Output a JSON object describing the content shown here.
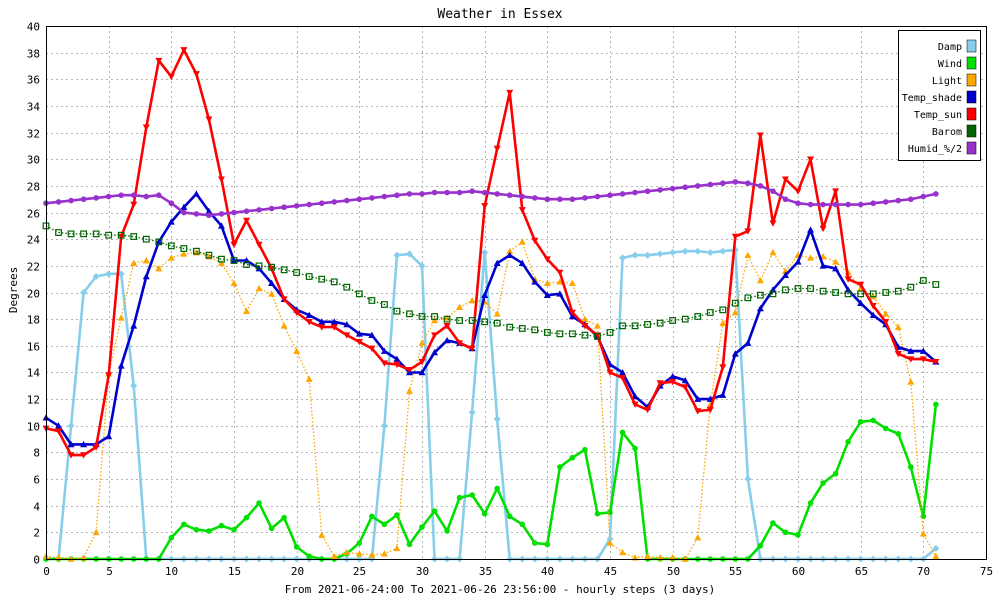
{
  "chart_data": {
    "type": "line",
    "title": "Weather in Essex",
    "xlabel": "From 2021-06-24:00 To 2021-06-26 23:56:00 - hourly steps (3 days)",
    "ylabel": "Degrees",
    "xlim": [
      0,
      75
    ],
    "ylim": [
      0,
      40
    ],
    "x_ticks": [
      "0",
      "5",
      "10",
      "15",
      "20",
      "25",
      "30",
      "35",
      "40",
      "45",
      "50",
      "55",
      "60",
      "65",
      "70",
      "75"
    ],
    "y_ticks": [
      "0",
      "2",
      "4",
      "6",
      "8",
      "10",
      "12",
      "14",
      "16",
      "18",
      "20",
      "22",
      "24",
      "26",
      "28",
      "30",
      "32",
      "34",
      "36",
      "38",
      "40"
    ],
    "grid": true,
    "legend_position": "top-right",
    "x": [
      0,
      1,
      2,
      3,
      4,
      5,
      6,
      7,
      8,
      9,
      10,
      11,
      12,
      13,
      14,
      15,
      16,
      17,
      18,
      19,
      20,
      21,
      22,
      23,
      24,
      25,
      26,
      27,
      28,
      29,
      30,
      31,
      32,
      33,
      34,
      35,
      36,
      37,
      38,
      39,
      40,
      41,
      42,
      43,
      44,
      45,
      46,
      47,
      48,
      49,
      50,
      51,
      52,
      53,
      54,
      55,
      56,
      57,
      58,
      59,
      60,
      61,
      62,
      63,
      64,
      65,
      66,
      67,
      68,
      69,
      70,
      71
    ],
    "series": [
      {
        "name": "Damp",
        "color": "#87ceeb",
        "marker": "diamond",
        "line": "solid",
        "values": [
          0,
          0,
          10,
          20,
          21.2,
          21.4,
          21.4,
          13,
          0,
          0,
          0,
          0,
          0,
          0,
          0,
          0,
          0,
          0,
          0,
          0,
          0,
          0,
          0,
          0,
          0,
          0,
          0,
          10,
          22.8,
          22.9,
          22,
          0,
          0,
          0,
          11,
          23,
          10.5,
          0,
          0,
          0,
          0,
          0,
          0,
          0,
          0,
          1.5,
          22.6,
          22.8,
          22.8,
          22.9,
          23,
          23.1,
          23.1,
          23,
          23.1,
          23.2,
          6,
          0,
          0,
          0,
          0,
          0,
          0,
          0,
          0,
          0,
          0,
          0,
          0,
          0,
          0,
          0.8
        ]
      },
      {
        "name": "Wind",
        "color": "#00e000",
        "marker": "circle",
        "line": "solid",
        "values": [
          0,
          0,
          0,
          0,
          0,
          0,
          0,
          0,
          0,
          0,
          1.6,
          2.6,
          2.2,
          2.1,
          2.5,
          2.2,
          3.1,
          4.2,
          2.3,
          3.1,
          0.9,
          0.2,
          0,
          0,
          0.4,
          1.2,
          3.2,
          2.6,
          3.3,
          1.1,
          2.4,
          3.6,
          2.1,
          4.6,
          4.8,
          3.4,
          5.3,
          3.2,
          2.6,
          1.2,
          1.1,
          6.9,
          7.6,
          8.2,
          3.4,
          3.5,
          9.5,
          8.3,
          0,
          0,
          0,
          0,
          0,
          0,
          0,
          0,
          0,
          1,
          2.7,
          2,
          1.8,
          4.2,
          5.7,
          6.4,
          8.8,
          10.3,
          10.4,
          9.8,
          9.4,
          6.9,
          3.2,
          11.6
        ]
      },
      {
        "name": "Light",
        "color": "#ffa500",
        "marker": "triangle-up",
        "line": "dotted",
        "values": [
          0.2,
          0.1,
          0,
          0.1,
          2,
          13.9,
          18.1,
          22.2,
          22.4,
          21.8,
          22.6,
          22.9,
          23,
          22.7,
          22.2,
          20.7,
          18.6,
          20.3,
          19.9,
          17.5,
          15.6,
          13.5,
          1.8,
          0.2,
          0.5,
          0.4,
          0.3,
          0.4,
          0.8,
          12.6,
          16.2,
          17.9,
          18.1,
          18.9,
          19.4,
          19.3,
          18.4,
          23.1,
          23.8,
          21,
          20.7,
          20.8,
          20.7,
          18,
          17.5,
          1.2,
          0.5,
          0.1,
          0.2,
          0.1,
          0.1,
          0,
          1.6,
          11.6,
          17.7,
          18.5,
          22.8,
          20.9,
          23,
          21.6,
          22.8,
          22.6,
          22.7,
          22.3,
          21.5,
          20.3,
          19.7,
          18.4,
          17.4,
          13.3,
          1.9,
          0.2
        ]
      },
      {
        "name": "Temp_shade",
        "color": "#0000cd",
        "marker": "triangle-up",
        "line": "solid",
        "values": [
          10.6,
          10,
          8.6,
          8.6,
          8.6,
          9.2,
          14.5,
          17.5,
          21.2,
          23.8,
          25.3,
          26.4,
          27.4,
          26.1,
          25,
          22.4,
          22.4,
          21.8,
          20.7,
          19.5,
          18.7,
          18.3,
          17.8,
          17.8,
          17.6,
          16.9,
          16.8,
          15.6,
          15,
          14,
          14,
          15.5,
          16.4,
          16.2,
          15.8,
          19.8,
          22.2,
          22.8,
          22.2,
          20.8,
          19.8,
          19.9,
          18.2,
          17.6,
          16.7,
          14.6,
          14,
          12.2,
          11.4,
          13,
          13.7,
          13.4,
          12,
          12,
          12.3,
          15.4,
          16.2,
          18.8,
          20.2,
          21.3,
          22.3,
          24.7,
          22,
          21.8,
          20.2,
          19.2,
          18.3,
          17.6,
          15.9,
          15.6,
          15.6,
          14.8
        ]
      },
      {
        "name": "Temp_sun",
        "color": "#ff0000",
        "marker": "triangle-down",
        "line": "solid",
        "values": [
          9.8,
          9.6,
          7.8,
          7.8,
          8.4,
          13.8,
          24.2,
          26.6,
          32.4,
          37.4,
          36.2,
          38.2,
          36.4,
          33,
          28.5,
          23.6,
          25.4,
          23.6,
          21.8,
          19.5,
          18.5,
          17.8,
          17.4,
          17.4,
          16.8,
          16.3,
          15.8,
          14.7,
          14.6,
          14.2,
          14.8,
          16.8,
          17.5,
          16.2,
          15.8,
          26.5,
          30.8,
          35,
          26.2,
          23.9,
          22.5,
          21.5,
          18.5,
          17.5,
          16.8,
          14,
          13.6,
          11.6,
          11.2,
          13.2,
          13.3,
          12.9,
          11.1,
          11.2,
          14.4,
          24.2,
          24.6,
          31.8,
          25.2,
          28.5,
          27.6,
          30,
          24.8,
          27.6,
          21,
          20.6,
          19,
          17.8,
          15.4,
          15,
          15,
          14.8
        ]
      },
      {
        "name": "Barom",
        "color": "#006400",
        "marker": "square",
        "line": "dotted",
        "values": [
          25,
          24.5,
          24.4,
          24.4,
          24.4,
          24.3,
          24.3,
          24.2,
          24,
          23.8,
          23.5,
          23.3,
          23.1,
          22.8,
          22.5,
          22.4,
          22.1,
          22,
          21.9,
          21.7,
          21.5,
          21.2,
          21,
          20.8,
          20.4,
          19.9,
          19.4,
          19.1,
          18.6,
          18.4,
          18.2,
          18.2,
          18,
          17.9,
          17.9,
          17.8,
          17.7,
          17.4,
          17.3,
          17.2,
          17,
          16.9,
          16.9,
          16.8,
          16.7,
          17,
          17.5,
          17.5,
          17.6,
          17.7,
          17.9,
          18,
          18.2,
          18.5,
          18.7,
          19.2,
          19.6,
          19.8,
          19.9,
          20.2,
          20.3,
          20.3,
          20.1,
          20,
          19.9,
          19.9,
          19.9,
          20,
          20.1,
          20.4,
          20.9,
          20.6
        ]
      },
      {
        "name": "Humid_%/2",
        "color": "#9932cc",
        "marker": "circle",
        "line": "solid",
        "values": [
          26.7,
          26.8,
          26.9,
          27,
          27.1,
          27.2,
          27.3,
          27.3,
          27.2,
          27.3,
          26.7,
          26,
          25.9,
          25.8,
          25.9,
          26,
          26.1,
          26.2,
          26.3,
          26.4,
          26.5,
          26.6,
          26.7,
          26.8,
          26.9,
          27,
          27.1,
          27.2,
          27.3,
          27.4,
          27.4,
          27.5,
          27.5,
          27.5,
          27.6,
          27.5,
          27.4,
          27.3,
          27.2,
          27.1,
          27,
          27,
          27,
          27.1,
          27.2,
          27.3,
          27.4,
          27.5,
          27.6,
          27.7,
          27.8,
          27.9,
          28,
          28.1,
          28.2,
          28.3,
          28.2,
          28,
          27.6,
          27,
          26.7,
          26.6,
          26.6,
          26.6,
          26.6,
          26.6,
          26.7,
          26.8,
          26.9,
          27,
          27.2,
          27.4
        ]
      }
    ]
  }
}
